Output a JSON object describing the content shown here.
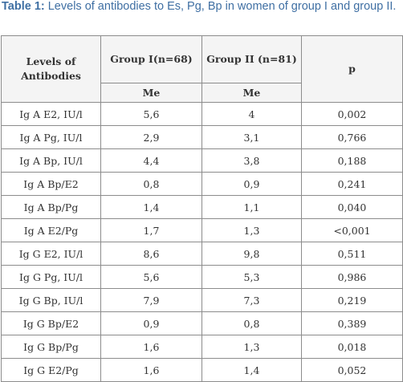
{
  "caption": {
    "label": "Table 1:",
    "text": " Levels of antibodies to Es, Pg, Bp in women of group I and group II."
  },
  "table": {
    "headers": {
      "levels": "Levels of Antibodies",
      "group1": "Group I(n=68)",
      "group2": "Group II (n=81)",
      "p": "p",
      "me1": "Me",
      "me2": "Me"
    },
    "rows": [
      {
        "name": "Ig A E2, IU/l",
        "g1": "5,6",
        "g2": "4",
        "p": "0,002"
      },
      {
        "name": "Ig A Pg, IU/l",
        "g1": "2,9",
        "g2": "3,1",
        "p": "0,766"
      },
      {
        "name": "Ig A Bp, IU/l",
        "g1": "4,4",
        "g2": "3,8",
        "p": "0,188"
      },
      {
        "name": "Ig A Bp/E2",
        "g1": "0,8",
        "g2": "0,9",
        "p": "0,241"
      },
      {
        "name": "Ig A Bp/Pg",
        "g1": "1,4",
        "g2": "1,1",
        "p": "0,040"
      },
      {
        "name": "Ig A E2/Pg",
        "g1": "1,7",
        "g2": "1,3",
        "p": "<0,001"
      },
      {
        "name": "Ig G E2, IU/l",
        "g1": "8,6",
        "g2": "9,8",
        "p": "0,511"
      },
      {
        "name": "Ig G Pg, IU/l",
        "g1": "5,6",
        "g2": "5,3",
        "p": "0,986"
      },
      {
        "name": "Ig G Bp, IU/l",
        "g1": "7,9",
        "g2": "7,3",
        "p": "0,219"
      },
      {
        "name": "Ig G Bp/E2",
        "g1": "0,9",
        "g2": "0,8",
        "p": "0,389"
      },
      {
        "name": "Ig G Bp/Pg",
        "g1": "1,6",
        "g2": "1,3",
        "p": "0,018"
      },
      {
        "name": "Ig G E2/Pg",
        "g1": "1,6",
        "g2": "1,4",
        "p": "0,052"
      }
    ]
  }
}
